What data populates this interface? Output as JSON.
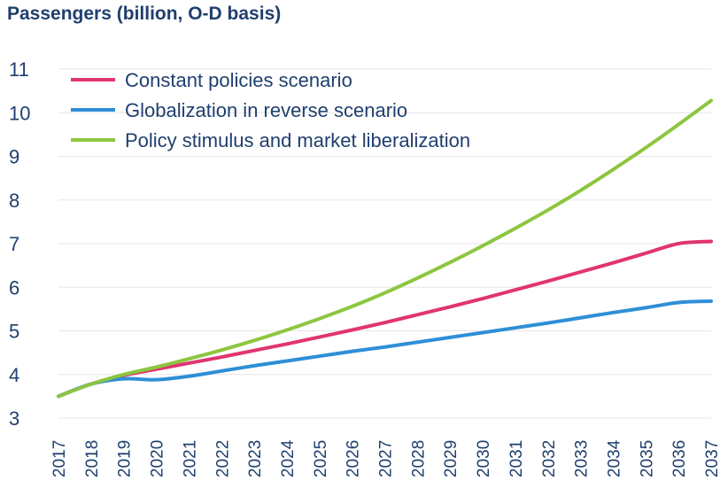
{
  "chart_data": {
    "type": "line",
    "title": "Passengers (billion, O-D basis)",
    "xlabel": "",
    "ylabel": "",
    "x": [
      "2017",
      "2018",
      "2019",
      "2020",
      "2021",
      "2022",
      "2023",
      "2024",
      "2025",
      "2026",
      "2027",
      "2028",
      "2029",
      "2030",
      "2031",
      "2032",
      "2033",
      "2034",
      "2035",
      "2036",
      "2037"
    ],
    "ylim": [
      3,
      11
    ],
    "yticks": [
      3,
      4,
      5,
      6,
      7,
      8,
      9,
      10,
      11
    ],
    "grid": true,
    "legend_position": "top-left",
    "series": [
      {
        "name": "Constant policies scenario",
        "color": "#e0356f",
        "values": [
          3.5,
          3.78,
          3.98,
          4.12,
          4.26,
          4.4,
          4.55,
          4.7,
          4.86,
          5.02,
          5.19,
          5.37,
          5.55,
          5.74,
          5.94,
          6.14,
          6.35,
          6.56,
          6.78,
          7.0,
          7.05
        ]
      },
      {
        "name": "Globalization in reverse scenario",
        "color": "#2e8fd6",
        "values": [
          3.5,
          3.78,
          3.9,
          3.88,
          3.96,
          4.08,
          4.2,
          4.31,
          4.42,
          4.53,
          4.63,
          4.74,
          4.85,
          4.96,
          5.07,
          5.18,
          5.3,
          5.42,
          5.53,
          5.65,
          5.68
        ]
      },
      {
        "name": "Policy stimulus and market liberalization",
        "color": "#8cc63f",
        "values": [
          3.5,
          3.78,
          4.0,
          4.17,
          4.36,
          4.56,
          4.78,
          5.02,
          5.28,
          5.56,
          5.87,
          6.21,
          6.57,
          6.95,
          7.35,
          7.77,
          8.22,
          8.7,
          9.2,
          9.73,
          10.28
        ]
      }
    ]
  }
}
